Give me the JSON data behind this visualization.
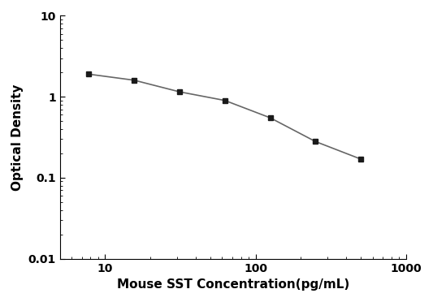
{
  "x": [
    7.8,
    15.6,
    31.25,
    62.5,
    125,
    250,
    500
  ],
  "y": [
    1.9,
    1.6,
    1.15,
    0.9,
    0.55,
    0.28,
    0.17
  ],
  "xlabel": "Mouse SST Concentration(pg/mL)",
  "ylabel": "Optical Density",
  "xlim": [
    5,
    1000
  ],
  "ylim": [
    0.01,
    10
  ],
  "xticks": [
    10,
    100,
    1000
  ],
  "yticks": [
    0.01,
    0.1,
    1,
    10
  ],
  "xtick_labels": [
    "10",
    "100",
    "1000"
  ],
  "ytick_labels": [
    "0.01",
    "0.1",
    "1",
    "10"
  ],
  "line_color": "#666666",
  "marker_color": "#1a1a1a",
  "marker": "s",
  "marker_size": 5,
  "linewidth": 1.2,
  "background_color": "#ffffff",
  "xlabel_fontsize": 11,
  "ylabel_fontsize": 11,
  "tick_fontsize": 10,
  "label_fontweight": "bold"
}
